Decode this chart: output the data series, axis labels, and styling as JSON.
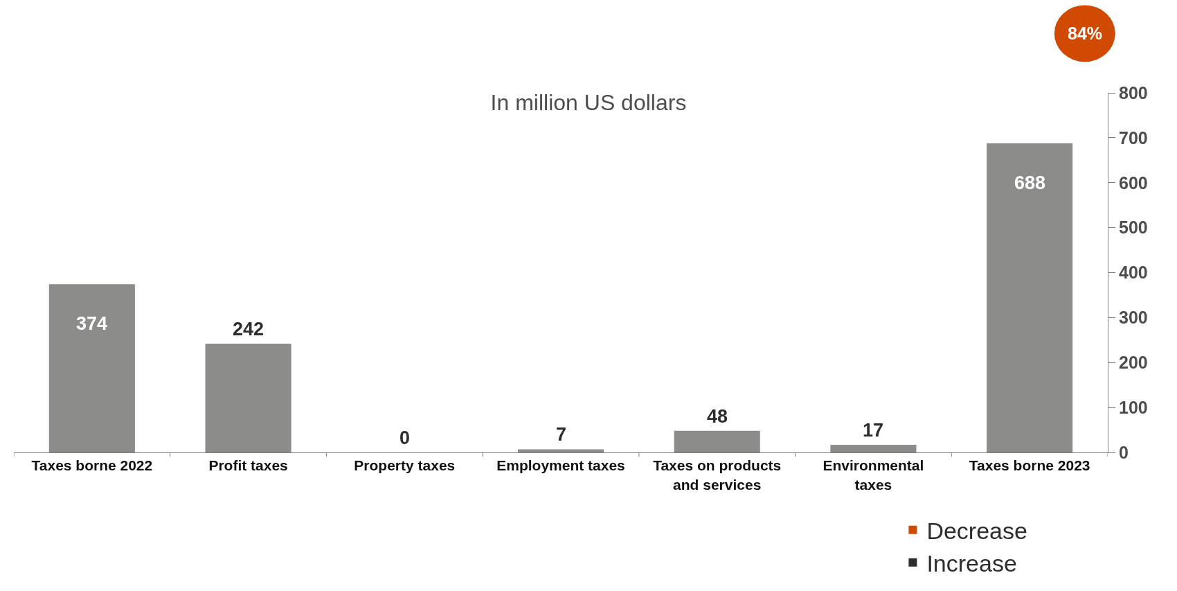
{
  "chart_data": {
    "type": "bar",
    "title": "In million US dollars",
    "categories": [
      "Taxes borne 2022",
      "Profit taxes",
      "Property taxes",
      "Employment taxes",
      "Taxes on products and services",
      "Environmental taxes",
      "Taxes borne 2023"
    ],
    "series": [
      {
        "color": "#8c8d8a",
        "values": [
          374,
          242,
          0,
          7,
          48,
          17,
          688
        ]
      },
      {
        "name": "Decrease",
        "color": "#d04a02",
        "values": [
          null,
          null,
          null,
          null,
          null,
          null,
          null
        ]
      },
      {
        "name": "Increase",
        "color": "#2d2d2d",
        "values": [
          null,
          null,
          null,
          null,
          null,
          null,
          null
        ]
      }
    ],
    "ylim": [
      0,
      800
    ],
    "yticks": [
      0,
      100,
      200,
      300,
      400,
      500,
      600,
      700,
      800
    ],
    "data_labels": true,
    "legend": "bottom right",
    "annotations": [
      "84%"
    ]
  }
}
